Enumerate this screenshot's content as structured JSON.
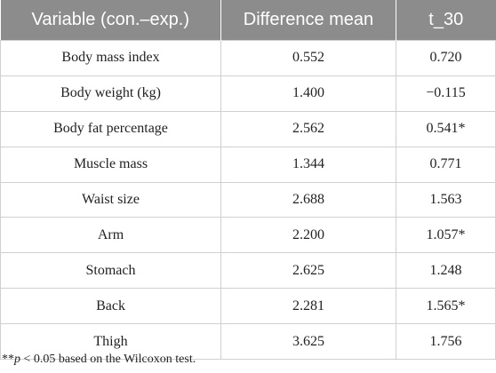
{
  "table": {
    "headers": [
      "Variable (con.–exp.)",
      "Difference mean",
      "t_30"
    ],
    "rows": [
      [
        "Body mass index",
        "0.552",
        "0.720"
      ],
      [
        "Body weight (kg)",
        "1.400",
        "−0.115"
      ],
      [
        "Body fat percentage",
        "2.562",
        "0.541*"
      ],
      [
        "Muscle mass",
        "1.344",
        "0.771"
      ],
      [
        "Waist size",
        "2.688",
        "1.563"
      ],
      [
        "Arm",
        "2.200",
        "1.057*"
      ],
      [
        "Stomach",
        "2.625",
        "1.248"
      ],
      [
        "Back",
        "2.281",
        "1.565*"
      ],
      [
        "Thigh",
        "3.625",
        "1.756"
      ]
    ]
  },
  "footnote": {
    "prefix": "**",
    "p": "p",
    "rest": " < 0.05 based on the Wilcoxon test."
  }
}
